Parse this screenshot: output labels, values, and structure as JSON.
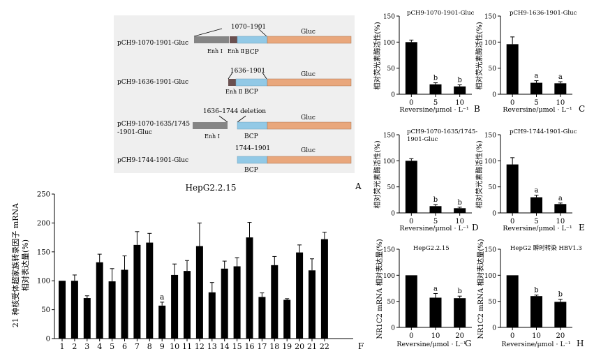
{
  "panel_a": {
    "letter": "A",
    "constructs": [
      {
        "name": "pCH9-1070-1901-Gluc",
        "top_label": "1070–1901",
        "gluc": "Gluc",
        "enh1": "Enh Ⅰ",
        "enh2": "Enh Ⅱ",
        "bcp": "BCP"
      },
      {
        "name": "pCH9-1636-1901-Gluc",
        "top_label": "1636–1901",
        "gluc": "Gluc",
        "enh2": "Enh Ⅱ",
        "bcp": "BCP"
      },
      {
        "name_line1": "pCH9-1070-1635/1745",
        "name_line2": "-1901-Gluc",
        "top_label": "1636–1744 deletion",
        "gluc": "Gluc",
        "enh1": "Enh Ⅰ",
        "bcp": "BCP"
      },
      {
        "name": "pCH9-1744-1901-Gluc",
        "top_label": "1744–1901",
        "gluc": "Gluc",
        "bcp": "BCP"
      }
    ],
    "colors": {
      "enh1": "#858585",
      "enh2": "#6a5050",
      "bcp": "#92c9e6",
      "gluc": "#e9a77c",
      "panel_bg": "#efefef"
    }
  },
  "chart_data": [
    {
      "id": "F",
      "type": "bar",
      "title": "HepG2.2.15",
      "ylabel": "21 种核受体超家族转录因子 mRNA\n相对表达量(%)",
      "ylim": [
        0,
        250
      ],
      "yticks": [
        0,
        50,
        100,
        150,
        200,
        250
      ],
      "categories": [
        "1",
        "2",
        "3",
        "4",
        "5",
        "6",
        "7",
        "8",
        "9",
        "10",
        "11",
        "12",
        "13",
        "14",
        "15",
        "16",
        "17",
        "18",
        "19",
        "20",
        "21",
        "22"
      ],
      "values": [
        100,
        100,
        70,
        132,
        99,
        119,
        162,
        166,
        57,
        110,
        117,
        160,
        80,
        121,
        125,
        175,
        72,
        127,
        67,
        149,
        118,
        172
      ],
      "errors": [
        0,
        10,
        4,
        14,
        22,
        24,
        23,
        16,
        6,
        19,
        18,
        40,
        17,
        13,
        15,
        26,
        7,
        15,
        2,
        13,
        20,
        12
      ],
      "annotations": [
        {
          "index": 8,
          "text": "a"
        }
      ],
      "letter": "F"
    },
    {
      "id": "B",
      "type": "bar",
      "title": "pCH9-1070-1901-Gluc",
      "ylabel": "相对荧光素酶活性(%)",
      "xlabel": "Reversine/μmol · L⁻¹",
      "ylim": [
        0,
        150
      ],
      "yticks": [
        0,
        50,
        100,
        150
      ],
      "categories": [
        "0",
        "5",
        "10"
      ],
      "values": [
        100,
        19,
        15
      ],
      "errors": [
        4,
        3,
        3
      ],
      "sig": [
        "",
        "b",
        "b"
      ],
      "letter": "B"
    },
    {
      "id": "C",
      "type": "bar",
      "title": "pCH9-1636-1901-Gluc",
      "ylabel": "相对荧光素酶活性(%)",
      "xlabel": "Reversine/μmol · L⁻¹",
      "ylim": [
        0,
        150
      ],
      "yticks": [
        0,
        50,
        100,
        150
      ],
      "categories": [
        "0",
        "5",
        "10"
      ],
      "values": [
        96,
        22,
        21
      ],
      "errors": [
        14,
        4,
        3
      ],
      "sig": [
        "",
        "a",
        "a"
      ],
      "letter": "C"
    },
    {
      "id": "D",
      "type": "bar",
      "title": "pCH9-1070-1635/1745-\n1901-Gluc",
      "ylabel": "相对荧光素酶活性(%)",
      "xlabel": "Reversine/μmol · L⁻¹",
      "ylim": [
        0,
        150
      ],
      "yticks": [
        0,
        50,
        100,
        150
      ],
      "categories": [
        "0",
        "5",
        "10"
      ],
      "values": [
        100,
        13,
        9
      ],
      "errors": [
        4,
        3,
        2
      ],
      "sig": [
        "",
        "b",
        "b"
      ],
      "letter": "D"
    },
    {
      "id": "E",
      "type": "bar",
      "title": "pCH9-1744-1901-Gluc",
      "ylabel": "相对荧光素酶活性(%)",
      "xlabel": "Reversine/μmol · L⁻¹",
      "ylim": [
        0,
        150
      ],
      "yticks": [
        0,
        50,
        100,
        150
      ],
      "categories": [
        "0",
        "5",
        "10"
      ],
      "values": [
        93,
        30,
        17
      ],
      "errors": [
        13,
        4,
        2
      ],
      "sig": [
        "",
        "a",
        "a"
      ],
      "letter": "E"
    },
    {
      "id": "G",
      "type": "bar",
      "title": "HepG2.2.15",
      "ylabel": "NR1C2 mRNA 相对表达量(%)",
      "xlabel": "Reversine/μmol · L⁻¹",
      "ylim": [
        0,
        150
      ],
      "yticks": [
        0,
        50,
        100,
        150
      ],
      "categories": [
        "0",
        "10",
        "20"
      ],
      "values": [
        100,
        57,
        56
      ],
      "errors": [
        0,
        8,
        4
      ],
      "sig": [
        "",
        "a",
        "b"
      ],
      "letter": "G"
    },
    {
      "id": "H",
      "type": "bar",
      "title": "HepG2 瞬时转染 HBV1.3",
      "ylabel": "NR1C2 mRNA 相对表达量(%)",
      "xlabel": "Reversine/μmol · L⁻¹",
      "ylim": [
        0,
        150
      ],
      "yticks": [
        0,
        50,
        100,
        150
      ],
      "categories": [
        "0",
        "10",
        "20"
      ],
      "values": [
        100,
        60,
        49
      ],
      "errors": [
        0,
        2,
        5
      ],
      "sig": [
        "",
        "b",
        "b"
      ],
      "letter": "H"
    }
  ]
}
